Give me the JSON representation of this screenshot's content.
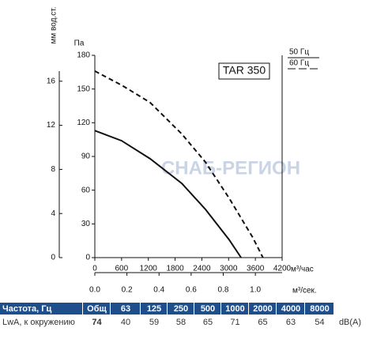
{
  "chart_data": {
    "type": "line",
    "label": "TAR 350",
    "watermark": "СНАБ-РЕГИОН",
    "y_label": "Па",
    "y2_label": "мм вод.ст.",
    "x_label": "м³/час",
    "x2_label": "м³/сек.",
    "xlim": [
      0,
      4200
    ],
    "xticks": [
      0,
      600,
      1200,
      1800,
      2400,
      3000,
      3600,
      4200
    ],
    "x2lim": [
      0,
      1.1667
    ],
    "x2ticks": [
      {
        "value": 0,
        "label": "0.0"
      },
      0.2,
      0.4,
      0.6,
      0.8,
      {
        "value": 1,
        "label": "1.0"
      }
    ],
    "ylim": [
      0,
      180
    ],
    "yticks": [
      0,
      30,
      60,
      90,
      120,
      150,
      180
    ],
    "y2lim": [
      0,
      18.35
    ],
    "y2ticks": [
      0,
      4,
      8,
      12,
      16
    ],
    "series": [
      {
        "name": "50 Гц",
        "color": "#111111",
        "dash": false,
        "x": [
          0,
          600,
          1240,
          1950,
          2480,
          3010,
          3280
        ],
        "values": [
          113,
          104,
          88,
          66,
          43,
          16,
          0
        ]
      },
      {
        "name": "60 Гц",
        "color": "#111111",
        "dash": true,
        "x": [
          0,
          620,
          1240,
          1950,
          2480,
          3010,
          3540,
          3770
        ],
        "values": [
          166,
          153,
          138,
          110,
          85,
          53,
          18,
          0
        ]
      }
    ]
  },
  "table": {
    "header": [
      "Частота, Гц",
      "Общ",
      "63",
      "125",
      "250",
      "500",
      "1000",
      "2000",
      "4000",
      "8000"
    ],
    "row": [
      "LwA, к окружению",
      "74",
      "40",
      "59",
      "58",
      "65",
      "71",
      "65",
      "63",
      "54",
      "dB(A)"
    ]
  }
}
